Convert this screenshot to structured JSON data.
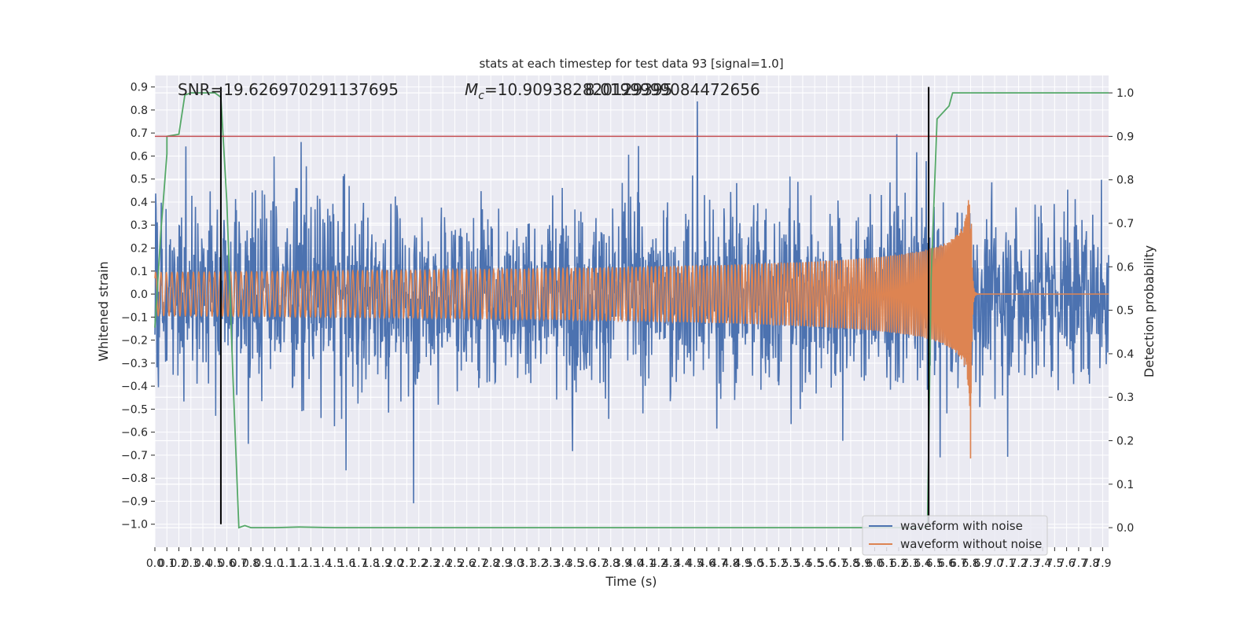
{
  "chart_data": {
    "type": "line",
    "title": "stats at each timestep for test data 93 [signal=1.0]",
    "xlabel": "Time (s)",
    "ylabel": "Whitened strain",
    "ylabel_right": "Detection probability",
    "xlim": [
      0.0,
      7.95
    ],
    "ylim": [
      -1.1,
      0.95
    ],
    "ylim_right": [
      -0.045,
      1.04
    ],
    "x_ticks": [
      "0.0",
      "0.1",
      "0.2",
      "0.3",
      "0.4",
      "0.5",
      "0.6",
      "0.7",
      "0.8",
      "0.9",
      "1.0",
      "1.1",
      "1.2",
      "1.3",
      "1.4",
      "1.5",
      "1.6",
      "1.7",
      "1.8",
      "1.9",
      "2.0",
      "2.1",
      "2.2",
      "2.3",
      "2.4",
      "2.5",
      "2.6",
      "2.7",
      "2.8",
      "2.9",
      "3.0",
      "3.1",
      "3.2",
      "3.3",
      "3.4",
      "3.5",
      "3.6",
      "3.7",
      "3.8",
      "3.9",
      "4.0",
      "4.1",
      "4.2",
      "4.3",
      "4.4",
      "4.5",
      "4.6",
      "4.7",
      "4.8",
      "4.9",
      "5.0",
      "5.1",
      "5.2",
      "5.3",
      "5.4",
      "5.5",
      "5.6",
      "5.7",
      "5.8",
      "5.9",
      "6.0",
      "6.1",
      "6.2",
      "6.3",
      "6.4",
      "6.5",
      "6.6",
      "6.7",
      "6.8",
      "6.9",
      "7.0",
      "7.1",
      "7.2",
      "7.3",
      "7.4",
      "7.5",
      "7.6",
      "7.7",
      "7.8",
      "7.9"
    ],
    "y_ticks": [
      "0.9",
      "0.8",
      "0.7",
      "0.6",
      "0.5",
      "0.4",
      "0.3",
      "0.2",
      "0.1",
      "0.0",
      "−0.1",
      "−0.2",
      "−0.3",
      "−0.4",
      "−0.5",
      "−0.6",
      "−0.7",
      "−0.8",
      "−0.9",
      "−1.0"
    ],
    "y_right_ticks": [
      "1.0",
      "0.9",
      "0.8",
      "0.7",
      "0.6",
      "0.5",
      "0.4",
      "0.3",
      "0.2",
      "0.1",
      "0.0"
    ],
    "annotations": {
      "snr": "SNR=19.626970291137695",
      "mc_symbol": "M",
      "mc_sub": "c",
      "mc_value": "=10.909382820129395",
      "overlap": "8.0199999084472656"
    },
    "threshold": {
      "axis": "right",
      "value": 0.9
    },
    "vlines": [
      0.55,
      6.45
    ],
    "vline_range": [
      -1.0,
      0.9
    ],
    "series": [
      {
        "name": "waveform with noise",
        "axis": "left",
        "color": "#4c72b0",
        "description": "noisy whitened strain, dense spikes",
        "band": 0.45,
        "x_range": [
          0.0,
          7.95
        ]
      },
      {
        "name": "waveform without noise",
        "axis": "left",
        "color": "#dd8452",
        "description": "chirp signal, amplitude grows to merger near t=6.8 s",
        "x_range": [
          0.0,
          7.95
        ],
        "merger_time": 6.8,
        "peak_amplitude": 0.73
      },
      {
        "name": "detection probability",
        "axis": "right",
        "color": "#55a868",
        "x": [
          0.0,
          0.05,
          0.1,
          0.1,
          0.2,
          0.25,
          0.3,
          0.4,
          0.5,
          0.55,
          0.6,
          0.65,
          0.7,
          0.75,
          0.8,
          1.0,
          1.2,
          1.5,
          2.0,
          3.0,
          4.0,
          5.0,
          6.0,
          6.3,
          6.44,
          6.47,
          6.52,
          6.62,
          6.65,
          7.0,
          7.5,
          7.95
        ],
        "values": [
          0.46,
          0.68,
          0.86,
          0.9,
          0.905,
          0.995,
          1.0,
          1.0,
          1.0,
          0.99,
          0.75,
          0.35,
          0.0,
          0.005,
          0.0,
          0.0,
          0.0015,
          0.0,
          0.0,
          0.0,
          0.0,
          0.0,
          0.0,
          0.0,
          0.0,
          0.57,
          0.94,
          0.97,
          1.0,
          1.0,
          1.0,
          1.0
        ]
      }
    ],
    "legend": {
      "position": "lower-right",
      "entries": [
        {
          "label": "waveform with noise",
          "color": "#4c72b0"
        },
        {
          "label": "waveform without noise",
          "color": "#dd8452"
        }
      ]
    },
    "colors": {
      "background": "#eaeaf2",
      "grid": "#ffffff",
      "threshold": "#c44e52",
      "vline": "#000000"
    }
  }
}
